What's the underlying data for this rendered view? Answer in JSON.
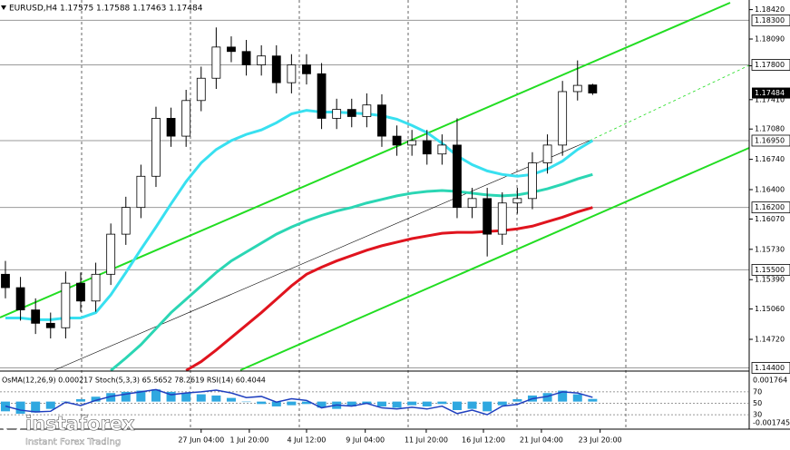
{
  "chart_data": {
    "type": "candlestick",
    "title": "EURUSD,H4  1.17575 1.17588 1.17463 1.17484",
    "xlim": [
      -0.36,
      49.4
    ],
    "ylim": [
      1.14374,
      1.18528
    ],
    "yticks": [
      {
        "value": 1.1842,
        "label": "1.18420"
      },
      {
        "value": 1.1809,
        "label": "1.18090"
      },
      {
        "value": 1.1779,
        "label": "1.17790"
      },
      {
        "value": 1.1741,
        "label": "1.17410"
      },
      {
        "value": 1.1708,
        "label": "1.17080"
      },
      {
        "value": 1.1674,
        "label": "1.16740"
      },
      {
        "value": 1.164,
        "label": "1.16400"
      },
      {
        "value": 1.1607,
        "label": "1.16070"
      },
      {
        "value": 1.1573,
        "label": "1.15730"
      },
      {
        "value": 1.1539,
        "label": "1.15390"
      },
      {
        "value": 1.1506,
        "label": "1.15060"
      },
      {
        "value": 1.1472,
        "label": "1.14720"
      }
    ],
    "levels": [
      {
        "value": 1.183,
        "label": "1.18300"
      },
      {
        "value": 1.178,
        "label": "1.17800"
      },
      {
        "value": 1.1695,
        "label": "1.16950"
      },
      {
        "value": 1.162,
        "label": "1.16200"
      },
      {
        "value": 1.155,
        "label": "1.15500"
      },
      {
        "value": 1.144,
        "label": "1.14400"
      }
    ],
    "current": {
      "value": 1.17484,
      "label": "1.17484"
    },
    "xticks": [
      {
        "value": 13.0,
        "label": "27 Jun 04:00"
      },
      {
        "value": 16.2,
        "label": "1 Jul 20:00"
      },
      {
        "value": 20.0,
        "label": "4 Jul 12:00"
      },
      {
        "value": 23.9,
        "label": "9 Jul 04:00"
      },
      {
        "value": 27.95,
        "label": "11 Jul 20:00"
      },
      {
        "value": 31.75,
        "label": "16 Jul 12:00"
      },
      {
        "value": 35.6,
        "label": "21 Jul 04:00"
      },
      {
        "value": 39.5,
        "label": "23 Jul 20:00"
      }
    ],
    "open": [
      1.1545,
      1.153,
      1.1505,
      1.149,
      1.1485,
      1.1535,
      1.1515,
      1.1545,
      1.159,
      1.162,
      1.1655,
      1.172,
      1.17,
      1.174,
      1.1765,
      1.18,
      1.1795,
      1.178,
      1.179,
      1.176,
      1.178,
      1.177,
      1.172,
      1.173,
      1.1722,
      1.1735,
      1.17,
      1.169,
      1.1695,
      1.168,
      1.169,
      1.162,
      1.163,
      1.159,
      1.1625,
      1.163,
      1.167,
      1.169,
      1.175,
      1.17575
    ],
    "high": [
      1.156,
      1.1542,
      1.1518,
      1.1502,
      1.1548,
      1.1547,
      1.1558,
      1.1602,
      1.1632,
      1.1668,
      1.1733,
      1.1732,
      1.1752,
      1.1778,
      1.1822,
      1.1812,
      1.1808,
      1.1802,
      1.1802,
      1.1792,
      1.1792,
      1.1782,
      1.1742,
      1.1742,
      1.1748,
      1.1747,
      1.1712,
      1.1707,
      1.1707,
      1.1702,
      1.172,
      1.1642,
      1.1642,
      1.1637,
      1.1642,
      1.1682,
      1.1702,
      1.1762,
      1.1785,
      1.17588
    ],
    "low": [
      1.1518,
      1.1493,
      1.1478,
      1.1473,
      1.1473,
      1.1503,
      1.1503,
      1.1533,
      1.1578,
      1.1608,
      1.1643,
      1.1688,
      1.1688,
      1.1728,
      1.1753,
      1.1783,
      1.1768,
      1.1768,
      1.1748,
      1.1748,
      1.1758,
      1.1708,
      1.1708,
      1.171,
      1.171,
      1.1688,
      1.1678,
      1.1678,
      1.1668,
      1.1668,
      1.1608,
      1.1608,
      1.1565,
      1.1578,
      1.1613,
      1.1618,
      1.1658,
      1.1678,
      1.174,
      1.17463
    ],
    "close": [
      1.153,
      1.1505,
      1.149,
      1.1485,
      1.1535,
      1.1515,
      1.1545,
      1.159,
      1.162,
      1.1655,
      1.172,
      1.17,
      1.174,
      1.1765,
      1.18,
      1.1795,
      1.178,
      1.179,
      1.176,
      1.178,
      1.177,
      1.172,
      1.173,
      1.1722,
      1.1735,
      1.17,
      1.169,
      1.1695,
      1.168,
      1.169,
      1.162,
      1.163,
      1.159,
      1.1625,
      1.163,
      1.167,
      1.169,
      1.175,
      1.1757,
      1.17484
    ],
    "series": [
      {
        "color": "#38e0f0",
        "values": [
          1.1496,
          1.1496,
          1.1494,
          1.1494,
          1.1496,
          1.1496,
          1.1502,
          1.1522,
          1.1547,
          1.1573,
          1.1598,
          1.1624,
          1.1649,
          1.167,
          1.1685,
          1.1695,
          1.1702,
          1.1707,
          1.1715,
          1.1725,
          1.1729,
          1.1727,
          1.1727,
          1.1726,
          1.1725,
          1.1723,
          1.1719,
          1.1712,
          1.1704,
          1.1692,
          1.1678,
          1.1668,
          1.1661,
          1.1657,
          1.1655,
          1.1657,
          1.1663,
          1.1672,
          1.1685,
          1.1695
        ]
      },
      {
        "color": "#2bd6b4",
        "values": [
          null,
          null,
          null,
          null,
          null,
          null,
          null,
          1.1437,
          1.1451,
          1.1466,
          1.1484,
          1.1502,
          1.1517,
          1.1532,
          1.1547,
          1.156,
          1.157,
          1.158,
          1.159,
          1.1598,
          1.1605,
          1.1611,
          1.1616,
          1.162,
          1.1625,
          1.1629,
          1.1633,
          1.1636,
          1.1638,
          1.1639,
          1.1638,
          1.1636,
          1.1634,
          1.1633,
          1.1634,
          1.1637,
          1.1641,
          1.1646,
          1.1652,
          1.1657
        ]
      },
      {
        "color": "#e0141e",
        "values": [
          null,
          null,
          null,
          null,
          null,
          null,
          null,
          null,
          null,
          null,
          null,
          null,
          1.1437,
          1.1447,
          1.146,
          1.1474,
          1.1488,
          1.1502,
          1.1517,
          1.1532,
          1.1545,
          1.1553,
          1.156,
          1.1566,
          1.1572,
          1.1577,
          1.1581,
          1.1585,
          1.1588,
          1.1591,
          1.1592,
          1.1592,
          1.1593,
          1.1594,
          1.1596,
          1.1599,
          1.1604,
          1.1609,
          1.1615,
          1.162
        ]
      }
    ],
    "indicator": {
      "title": "OsMA(12,26,9) 0.000217 Stoch(5,3,3) 65.5652 78.2619 RSI(14) 60.4044",
      "osma_ylim": [
        -0.001745,
        0.001764
      ],
      "osma_color": "#2fa8e0",
      "osma": [
        -0.0008,
        -0.001,
        -0.0009,
        -0.0006,
        0.0,
        0.0002,
        0.0004,
        0.0007,
        0.0008,
        0.0009,
        0.001,
        0.0008,
        0.0007,
        0.0006,
        0.0005,
        0.0003,
        0.0,
        -0.0002,
        -0.0004,
        -0.0003,
        -0.0002,
        -0.0005,
        -0.0006,
        -0.0004,
        -0.0002,
        -0.0004,
        -0.0005,
        -0.0003,
        -0.0004,
        -0.0002,
        -0.0007,
        -0.0006,
        -0.0008,
        -0.0003,
        0.0002,
        0.0005,
        0.0007,
        0.0009,
        0.0006,
        0.000217
      ],
      "rsi_ylim": [
        0,
        100
      ],
      "rsi_yticks": [
        70,
        50,
        30
      ],
      "rsi_color": "#1f3fbf",
      "rsi": [
        45,
        38,
        35,
        36,
        52,
        46,
        55,
        62,
        66,
        70,
        74,
        65,
        68,
        70,
        73,
        68,
        60,
        62,
        52,
        58,
        55,
        42,
        47,
        45,
        50,
        42,
        40,
        43,
        40,
        45,
        32,
        38,
        30,
        45,
        48,
        58,
        62,
        70,
        68,
        60.4044
      ]
    }
  },
  "logo": {
    "name": "instaforex",
    "tagline": "Instant Forex Trading"
  }
}
